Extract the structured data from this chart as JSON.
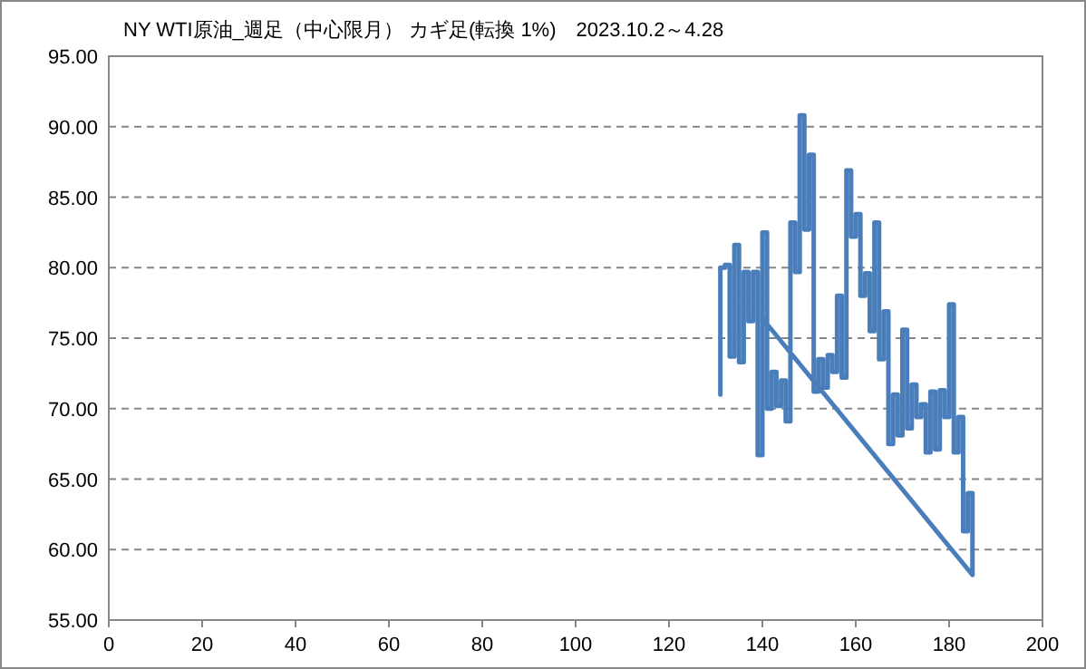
{
  "chart_data": {
    "type": "line",
    "title": "NY WTI原油_週足（中心限月） カギ足(転換 1%)　2023.10.2～4.28",
    "x": [
      131,
      131,
      132,
      132,
      133,
      133,
      134,
      134,
      135,
      135,
      136,
      136,
      137,
      137,
      138,
      138,
      139,
      139,
      140,
      140,
      141,
      141,
      142,
      142,
      143,
      143,
      144,
      144,
      145,
      145,
      146,
      146,
      147,
      147,
      148,
      148,
      149,
      149,
      150,
      150,
      151,
      151,
      152,
      152,
      153,
      153,
      154,
      154,
      155,
      155,
      156,
      156,
      157,
      157,
      158,
      158,
      159,
      159,
      160,
      160,
      161,
      161,
      162,
      162,
      163,
      163,
      164,
      164,
      165,
      165,
      166,
      166,
      167,
      167,
      168,
      168,
      169,
      169,
      170,
      170,
      171,
      171,
      172,
      172,
      173,
      173,
      174,
      174,
      175,
      175,
      176,
      176,
      177,
      177,
      178,
      178,
      179,
      179,
      180,
      180,
      181,
      181,
      182,
      182,
      183,
      183,
      184,
      184,
      185,
      185,
      140
    ],
    "series": [
      {
        "color": "#4a7ebb",
        "values": [
          71.0,
          80.0,
          80.0,
          80.2,
          80.2,
          73.7,
          73.7,
          81.6,
          81.6,
          73.3,
          73.3,
          79.7,
          79.7,
          76.2,
          76.2,
          79.7,
          79.7,
          66.7,
          66.7,
          82.5,
          82.5,
          70.0,
          70.0,
          72.6,
          72.6,
          70.2,
          70.2,
          72.0,
          72.0,
          69.1,
          69.1,
          83.2,
          83.2,
          79.7,
          79.7,
          90.8,
          90.8,
          82.7,
          82.7,
          88.0,
          88.0,
          71.2,
          71.2,
          73.5,
          73.5,
          71.5,
          71.5,
          73.8,
          73.8,
          72.6,
          72.6,
          78.0,
          78.0,
          72.2,
          72.2,
          86.9,
          86.9,
          82.2,
          82.2,
          83.8,
          83.8,
          78.0,
          78.0,
          79.6,
          79.6,
          75.5,
          75.5,
          83.2,
          83.2,
          73.5,
          73.5,
          76.9,
          76.9,
          67.5,
          67.5,
          71.0,
          71.0,
          68.1,
          68.1,
          75.6,
          75.6,
          68.6,
          68.6,
          71.7,
          71.7,
          69.4,
          69.4,
          70.3,
          70.3,
          66.9,
          66.9,
          71.2,
          71.2,
          67.1,
          67.1,
          71.3,
          71.3,
          69.4,
          69.4,
          77.4,
          77.4,
          66.9,
          66.9,
          69.4,
          69.4,
          61.3,
          61.3,
          64.0,
          64.0,
          58.2,
          76.4
        ]
      }
    ],
    "xlim": [
      0,
      200
    ],
    "xticks": [
      0,
      20,
      40,
      60,
      80,
      100,
      120,
      140,
      160,
      180,
      200
    ],
    "ylim": [
      55,
      95
    ],
    "yticks": [
      {
        "value": 55,
        "label": "55.00"
      },
      {
        "value": 60,
        "label": "60.00"
      },
      {
        "value": 65,
        "label": "65.00"
      },
      {
        "value": 70,
        "label": "70.00"
      },
      {
        "value": 75,
        "label": "75.00"
      },
      {
        "value": 80,
        "label": "80.00"
      },
      {
        "value": 85,
        "label": "85.00"
      },
      {
        "value": 90,
        "label": "90.00"
      },
      {
        "value": 95,
        "label": "95.00"
      }
    ],
    "grid": "y",
    "line_style": "solid",
    "marker": "none"
  }
}
